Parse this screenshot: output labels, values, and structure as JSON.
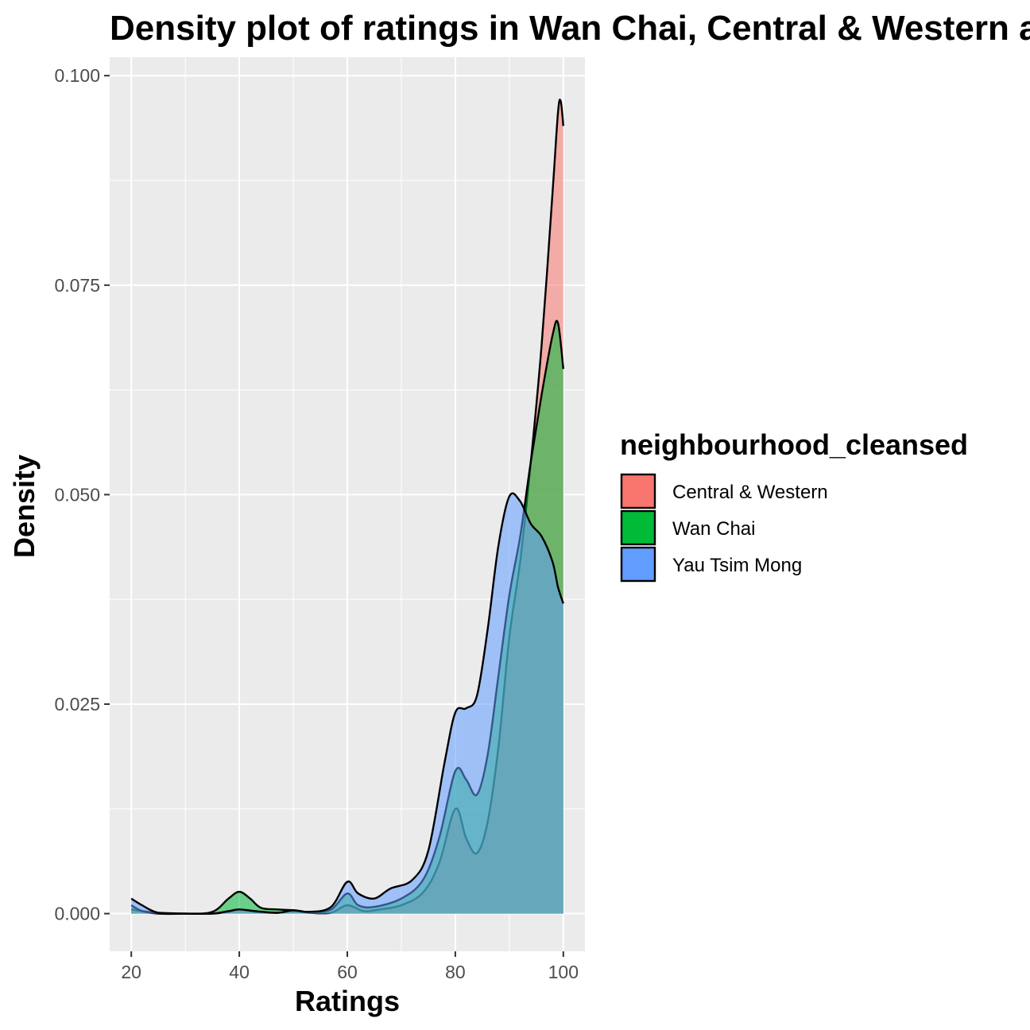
{
  "chart_data": {
    "type": "area",
    "title": "Density plot of ratings in Wan Chai, Central & Western and Yau Tsim Mong",
    "xlabel": "Ratings",
    "ylabel": "Density",
    "xlim": [
      16,
      104
    ],
    "ylim": [
      -0.0045,
      0.1022
    ],
    "x_ticks": [
      20,
      40,
      60,
      80,
      100
    ],
    "x_tick_labels": [
      "20",
      "40",
      "60",
      "80",
      "100"
    ],
    "y_ticks": [
      0,
      0.025,
      0.05,
      0.075,
      0.1
    ],
    "y_tick_labels": [
      "0.000",
      "0.025",
      "0.050",
      "0.075",
      "0.100"
    ],
    "grid": true,
    "legend": {
      "title": "neighbourhood_cleansed",
      "position": "right"
    },
    "series": [
      {
        "name": "Central & Western",
        "color": "#F8766D",
        "points": [
          [
            20,
            0.0005
          ],
          [
            22,
            0.0003
          ],
          [
            25,
            0.0001
          ],
          [
            30,
            0
          ],
          [
            35,
            0
          ],
          [
            38,
            0.0002
          ],
          [
            40,
            0.0005
          ],
          [
            43,
            0.0002
          ],
          [
            47,
            0.0001
          ],
          [
            50,
            0.0003
          ],
          [
            53,
            0.0001
          ],
          [
            57,
            0.0001
          ],
          [
            60,
            0.001
          ],
          [
            63,
            0.0003
          ],
          [
            66,
            0.0005
          ],
          [
            70,
            0.001
          ],
          [
            74,
            0.0025
          ],
          [
            77,
            0.006
          ],
          [
            80,
            0.0125
          ],
          [
            82,
            0.009
          ],
          [
            84,
            0.0072
          ],
          [
            86,
            0.011
          ],
          [
            88,
            0.02
          ],
          [
            90,
            0.033
          ],
          [
            92,
            0.042
          ],
          [
            94,
            0.054
          ],
          [
            96,
            0.068
          ],
          [
            98,
            0.086
          ],
          [
            99,
            0.0955
          ],
          [
            99.5,
            0.097
          ],
          [
            100,
            0.094
          ]
        ]
      },
      {
        "name": "Wan Chai",
        "color": "#00BA38",
        "points": [
          [
            20,
            0.001
          ],
          [
            22,
            0.0003
          ],
          [
            25,
            0
          ],
          [
            30,
            0
          ],
          [
            35,
            0.0002
          ],
          [
            38,
            0.0018
          ],
          [
            40,
            0.0026
          ],
          [
            42,
            0.0018
          ],
          [
            44,
            0.0007
          ],
          [
            47,
            0.0005
          ],
          [
            50,
            0.0004
          ],
          [
            53,
            0.0002
          ],
          [
            57,
            0.0005
          ],
          [
            60,
            0.0024
          ],
          [
            62,
            0.001
          ],
          [
            65,
            0.0008
          ],
          [
            70,
            0.0018
          ],
          [
            74,
            0.004
          ],
          [
            77,
            0.009
          ],
          [
            80,
            0.017
          ],
          [
            82,
            0.016
          ],
          [
            84,
            0.0142
          ],
          [
            86,
            0.019
          ],
          [
            88,
            0.0285
          ],
          [
            90,
            0.038
          ],
          [
            92,
            0.045
          ],
          [
            94,
            0.054
          ],
          [
            96,
            0.062
          ],
          [
            98,
            0.069
          ],
          [
            99,
            0.0705
          ],
          [
            100,
            0.065
          ]
        ]
      },
      {
        "name": "Yau Tsim Mong",
        "color": "#619CFF",
        "points": [
          [
            20,
            0.0018
          ],
          [
            22,
            0.001
          ],
          [
            25,
            0.0001
          ],
          [
            30,
            0
          ],
          [
            35,
            0
          ],
          [
            38,
            0.0003
          ],
          [
            40,
            0.0005
          ],
          [
            43,
            0.0003
          ],
          [
            47,
            0.0001
          ],
          [
            50,
            0.0004
          ],
          [
            53,
            0.0002
          ],
          [
            57,
            0.0008
          ],
          [
            60,
            0.0038
          ],
          [
            62,
            0.0024
          ],
          [
            65,
            0.0018
          ],
          [
            68,
            0.003
          ],
          [
            72,
            0.004
          ],
          [
            75,
            0.0075
          ],
          [
            78,
            0.018
          ],
          [
            80,
            0.024
          ],
          [
            82,
            0.0245
          ],
          [
            84,
            0.026
          ],
          [
            86,
            0.034
          ],
          [
            88,
            0.044
          ],
          [
            90,
            0.0498
          ],
          [
            92,
            0.0492
          ],
          [
            94,
            0.0465
          ],
          [
            96,
            0.045
          ],
          [
            98,
            0.042
          ],
          [
            99,
            0.039
          ],
          [
            100,
            0.037
          ]
        ]
      }
    ]
  }
}
